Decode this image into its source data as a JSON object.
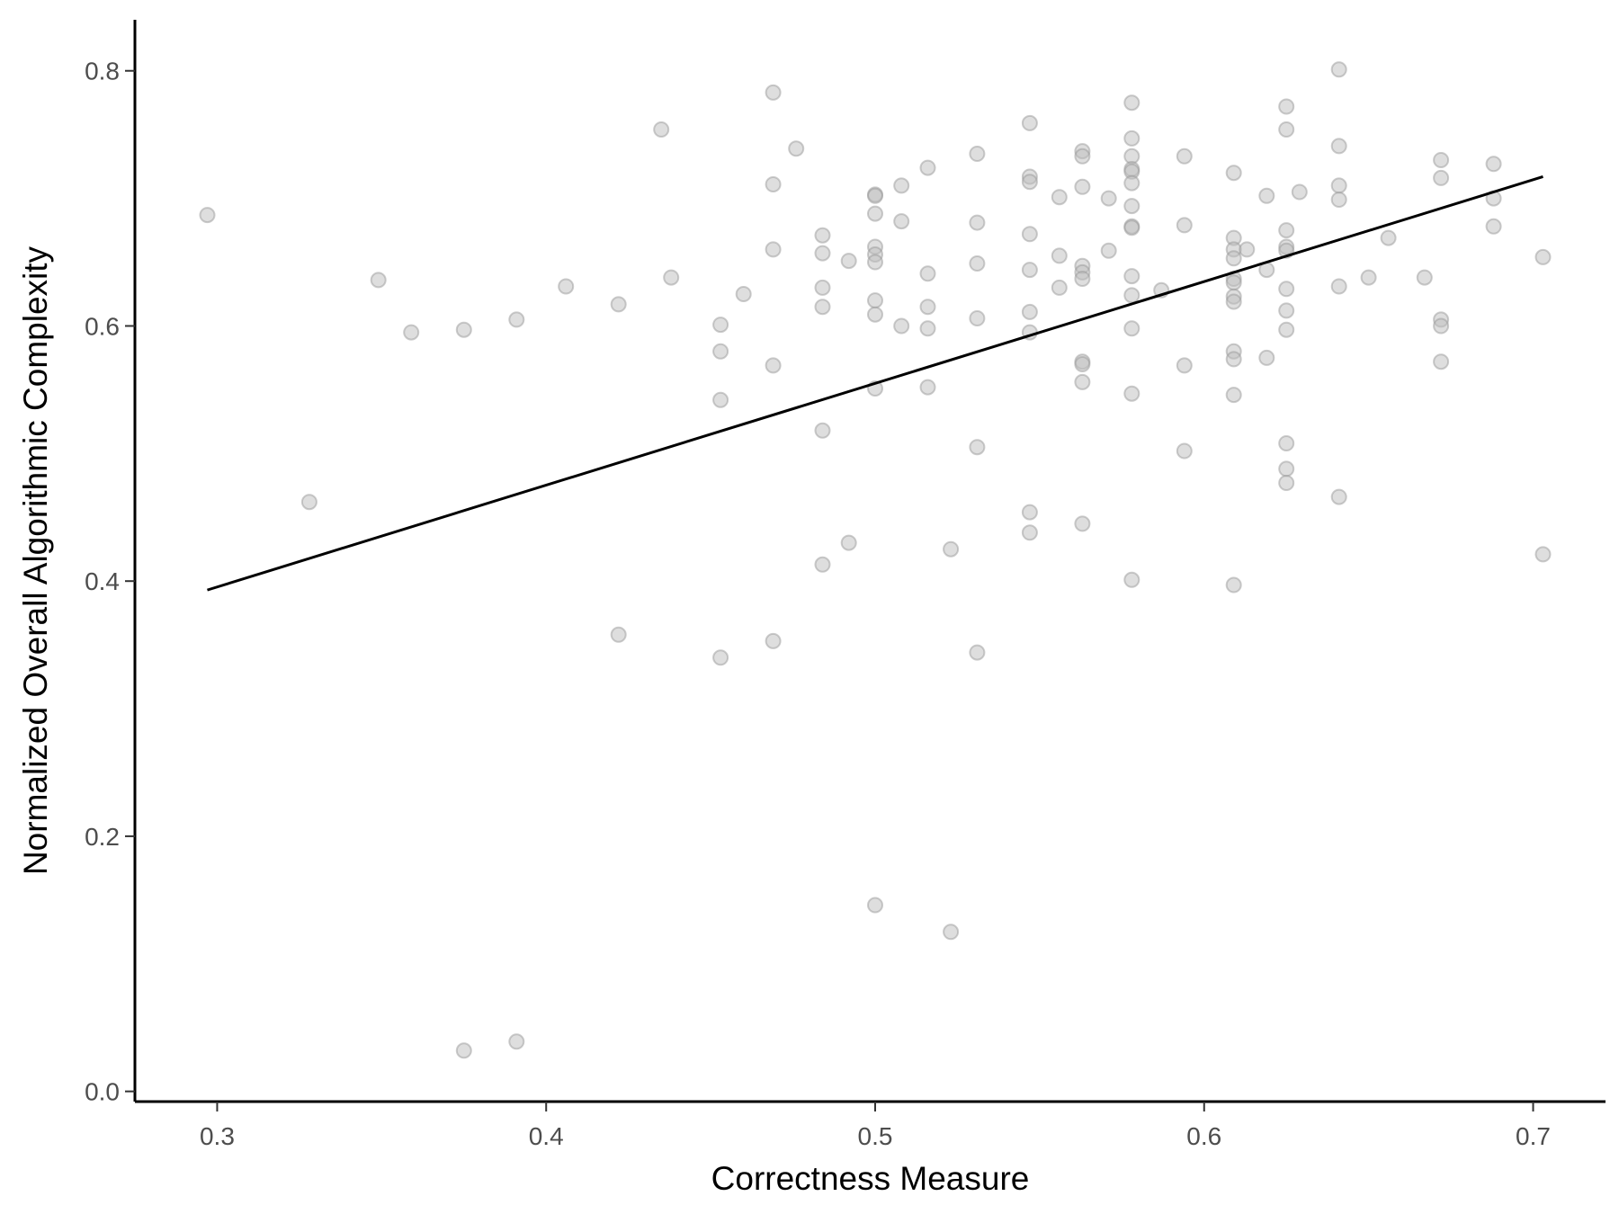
{
  "chart_data": {
    "type": "scatter",
    "title": "",
    "xlabel": "Correctness Measure",
    "ylabel": "Normalized Overall Algorithmic Complexity",
    "xlim": [
      0.275,
      0.722
    ],
    "ylim": [
      -0.008,
      0.84
    ],
    "x_ticks": [
      0.3,
      0.4,
      0.5,
      0.6,
      0.7
    ],
    "x_tick_labels": [
      "0.3",
      "0.4",
      "0.5",
      "0.6",
      "0.7"
    ],
    "y_ticks": [
      0.0,
      0.2,
      0.4,
      0.6,
      0.8
    ],
    "y_tick_labels": [
      "0.0",
      "0.2",
      "0.4",
      "0.6",
      "0.8"
    ],
    "grid": false,
    "legend": "none",
    "point_color": "#bdbdbd",
    "line_color": "#000000",
    "axis_color": "#000000",
    "trend_line": {
      "x": [
        0.297,
        0.703
      ],
      "y": [
        0.393,
        0.717
      ]
    },
    "series": [
      {
        "points": [
          [
            0.297,
            0.687
          ],
          [
            0.328,
            0.462
          ],
          [
            0.349,
            0.636
          ],
          [
            0.359,
            0.595
          ],
          [
            0.375,
            0.597
          ],
          [
            0.375,
            0.032
          ],
          [
            0.391,
            0.605
          ],
          [
            0.391,
            0.039
          ],
          [
            0.406,
            0.631
          ],
          [
            0.422,
            0.617
          ],
          [
            0.422,
            0.358
          ],
          [
            0.435,
            0.754
          ],
          [
            0.438,
            0.638
          ],
          [
            0.453,
            0.601
          ],
          [
            0.453,
            0.58
          ],
          [
            0.453,
            0.542
          ],
          [
            0.453,
            0.34
          ],
          [
            0.46,
            0.625
          ],
          [
            0.469,
            0.783
          ],
          [
            0.469,
            0.711
          ],
          [
            0.469,
            0.66
          ],
          [
            0.469,
            0.569
          ],
          [
            0.469,
            0.353
          ],
          [
            0.476,
            0.739
          ],
          [
            0.484,
            0.671
          ],
          [
            0.484,
            0.657
          ],
          [
            0.484,
            0.63
          ],
          [
            0.484,
            0.615
          ],
          [
            0.484,
            0.518
          ],
          [
            0.484,
            0.413
          ],
          [
            0.492,
            0.651
          ],
          [
            0.492,
            0.43
          ],
          [
            0.5,
            0.703
          ],
          [
            0.5,
            0.702
          ],
          [
            0.5,
            0.688
          ],
          [
            0.5,
            0.662
          ],
          [
            0.5,
            0.656
          ],
          [
            0.5,
            0.65
          ],
          [
            0.5,
            0.62
          ],
          [
            0.5,
            0.609
          ],
          [
            0.5,
            0.551
          ],
          [
            0.5,
            0.146
          ],
          [
            0.508,
            0.71
          ],
          [
            0.508,
            0.682
          ],
          [
            0.508,
            0.6
          ],
          [
            0.516,
            0.724
          ],
          [
            0.516,
            0.641
          ],
          [
            0.516,
            0.615
          ],
          [
            0.516,
            0.598
          ],
          [
            0.516,
            0.552
          ],
          [
            0.523,
            0.425
          ],
          [
            0.523,
            0.125
          ],
          [
            0.531,
            0.735
          ],
          [
            0.531,
            0.681
          ],
          [
            0.531,
            0.649
          ],
          [
            0.531,
            0.606
          ],
          [
            0.531,
            0.505
          ],
          [
            0.531,
            0.344
          ],
          [
            0.547,
            0.759
          ],
          [
            0.547,
            0.717
          ],
          [
            0.547,
            0.713
          ],
          [
            0.547,
            0.672
          ],
          [
            0.547,
            0.644
          ],
          [
            0.547,
            0.611
          ],
          [
            0.547,
            0.595
          ],
          [
            0.547,
            0.454
          ],
          [
            0.547,
            0.438
          ],
          [
            0.556,
            0.701
          ],
          [
            0.556,
            0.655
          ],
          [
            0.556,
            0.63
          ],
          [
            0.563,
            0.737
          ],
          [
            0.563,
            0.733
          ],
          [
            0.563,
            0.709
          ],
          [
            0.563,
            0.647
          ],
          [
            0.563,
            0.642
          ],
          [
            0.563,
            0.637
          ],
          [
            0.563,
            0.572
          ],
          [
            0.563,
            0.57
          ],
          [
            0.563,
            0.556
          ],
          [
            0.563,
            0.445
          ],
          [
            0.571,
            0.7
          ],
          [
            0.571,
            0.659
          ],
          [
            0.578,
            0.775
          ],
          [
            0.578,
            0.747
          ],
          [
            0.578,
            0.733
          ],
          [
            0.578,
            0.723
          ],
          [
            0.578,
            0.721
          ],
          [
            0.578,
            0.712
          ],
          [
            0.578,
            0.694
          ],
          [
            0.578,
            0.678
          ],
          [
            0.578,
            0.677
          ],
          [
            0.578,
            0.639
          ],
          [
            0.578,
            0.624
          ],
          [
            0.578,
            0.598
          ],
          [
            0.578,
            0.547
          ],
          [
            0.578,
            0.401
          ],
          [
            0.587,
            0.628
          ],
          [
            0.594,
            0.733
          ],
          [
            0.594,
            0.679
          ],
          [
            0.594,
            0.569
          ],
          [
            0.594,
            0.502
          ],
          [
            0.609,
            0.72
          ],
          [
            0.609,
            0.669
          ],
          [
            0.609,
            0.66
          ],
          [
            0.609,
            0.653
          ],
          [
            0.609,
            0.637
          ],
          [
            0.609,
            0.634
          ],
          [
            0.609,
            0.623
          ],
          [
            0.609,
            0.619
          ],
          [
            0.609,
            0.58
          ],
          [
            0.609,
            0.574
          ],
          [
            0.609,
            0.546
          ],
          [
            0.609,
            0.397
          ],
          [
            0.613,
            0.66
          ],
          [
            0.619,
            0.702
          ],
          [
            0.619,
            0.644
          ],
          [
            0.619,
            0.575
          ],
          [
            0.625,
            0.772
          ],
          [
            0.625,
            0.754
          ],
          [
            0.625,
            0.675
          ],
          [
            0.625,
            0.662
          ],
          [
            0.625,
            0.659
          ],
          [
            0.625,
            0.629
          ],
          [
            0.625,
            0.612
          ],
          [
            0.625,
            0.597
          ],
          [
            0.625,
            0.508
          ],
          [
            0.625,
            0.488
          ],
          [
            0.625,
            0.477
          ],
          [
            0.629,
            0.705
          ],
          [
            0.641,
            0.801
          ],
          [
            0.641,
            0.741
          ],
          [
            0.641,
            0.71
          ],
          [
            0.641,
            0.699
          ],
          [
            0.641,
            0.631
          ],
          [
            0.641,
            0.466
          ],
          [
            0.65,
            0.638
          ],
          [
            0.656,
            0.669
          ],
          [
            0.667,
            0.638
          ],
          [
            0.672,
            0.73
          ],
          [
            0.672,
            0.716
          ],
          [
            0.672,
            0.605
          ],
          [
            0.672,
            0.6
          ],
          [
            0.672,
            0.572
          ],
          [
            0.688,
            0.727
          ],
          [
            0.688,
            0.7
          ],
          [
            0.688,
            0.678
          ],
          [
            0.703,
            0.654
          ],
          [
            0.703,
            0.421
          ]
        ]
      }
    ]
  }
}
